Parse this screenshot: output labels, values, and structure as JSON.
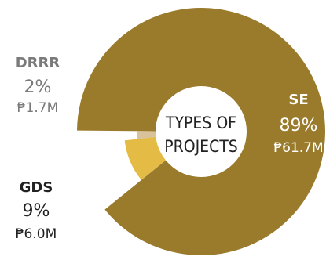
{
  "chart_data": {
    "type": "pie",
    "title": "TYPES OF PROJECTS",
    "title_lines": [
      "TYPES OF",
      "PROJECTS"
    ],
    "slices": [
      {
        "name": "SE",
        "percent": 89,
        "percent_label": "89%",
        "amount_label": "₱61.7M",
        "value": 61.7,
        "color": "#9a7b2c",
        "label_color": "#ffffff",
        "name_color": "#ffffff"
      },
      {
        "name": "GDS",
        "percent": 9,
        "percent_label": "9%",
        "amount_label": "₱6.0M",
        "value": 6.0,
        "color": "#e3bb45",
        "label_color": "#222222",
        "name_color": "#222222"
      },
      {
        "name": "DRRR",
        "percent": 2,
        "percent_label": "2%",
        "amount_label": "₱1.7M",
        "value": 1.7,
        "color": "#d8c29a",
        "label_color": "#7a7a7a",
        "name_color": "#7a7a7a"
      }
    ]
  }
}
